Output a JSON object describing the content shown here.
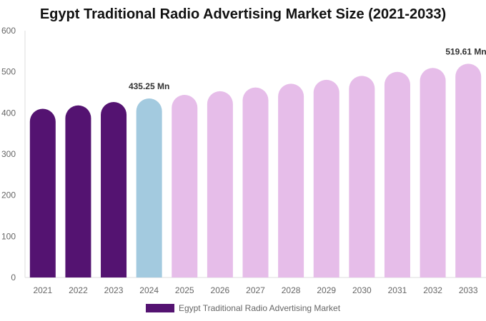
{
  "chart_data": {
    "type": "bar",
    "title": "Egypt Traditional Radio Advertising Market Size (2021-2033)",
    "categories": [
      "2021",
      "2022",
      "2023",
      "2024",
      "2025",
      "2026",
      "2027",
      "2028",
      "2029",
      "2030",
      "2031",
      "2032",
      "2033"
    ],
    "series": [
      {
        "name": "Egypt Traditional Radio Advertising Market",
        "values": [
          410.1,
          418.3,
          426.7,
          435.25,
          443.9,
          452.8,
          461.9,
          471.1,
          480.5,
          490.1,
          499.9,
          509.4,
          519.61
        ]
      }
    ],
    "data_labels": [
      {
        "category": "2024",
        "text": "435.25 Mn"
      },
      {
        "category": "2033",
        "text": "519.61 Mn"
      }
    ],
    "yticks": [
      "0",
      "100",
      "200",
      "300",
      "400",
      "500",
      "600"
    ],
    "ylim": [
      0,
      600
    ],
    "grid": false,
    "legend": "bottom",
    "colors": {
      "historical": "#541371",
      "base_year": "#a3cadf",
      "forecast": "#e6bde9"
    }
  }
}
